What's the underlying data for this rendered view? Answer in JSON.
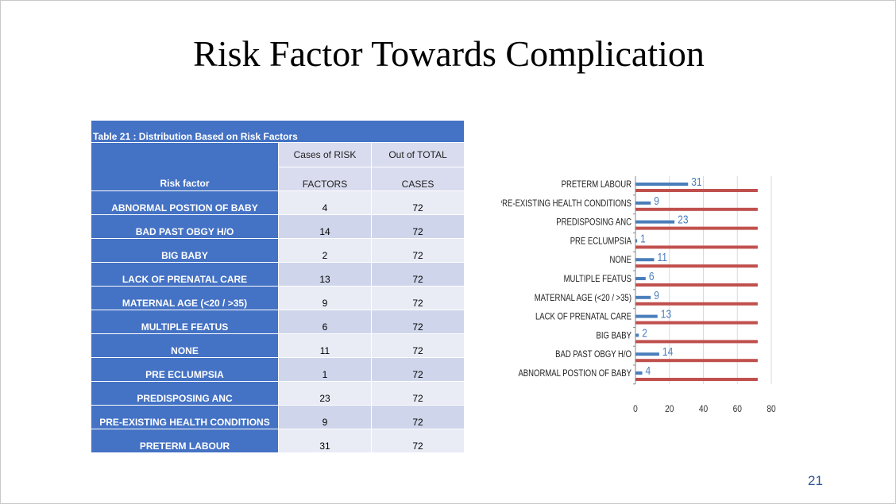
{
  "slide": {
    "title": "Risk Factor Towards Complication",
    "page_number": "21"
  },
  "table": {
    "caption": "Table 21 : Distribution Based on Risk Factors",
    "headers": {
      "factor": "Risk factor",
      "cases_line1": "Cases of RISK",
      "cases_line2": "FACTORS",
      "total_line1": "Out of TOTAL",
      "total_line2": "CASES"
    },
    "rows": [
      {
        "factor": "ABNORMAL POSTION OF BABY",
        "cases": "4",
        "total": "72"
      },
      {
        "factor": "BAD PAST OBGY H/O",
        "cases": "14",
        "total": "72"
      },
      {
        "factor": "BIG BABY",
        "cases": "2",
        "total": "72"
      },
      {
        "factor": "LACK OF PRENATAL CARE",
        "cases": "13",
        "total": "72"
      },
      {
        "factor": "MATERNAL AGE (<20 / >35)",
        "cases": "9",
        "total": "72"
      },
      {
        "factor": "MULTIPLE FEATUS",
        "cases": "6",
        "total": "72"
      },
      {
        "factor": "NONE",
        "cases": "11",
        "total": "72"
      },
      {
        "factor": "PRE ECLUMPSIA",
        "cases": "1",
        "total": "72"
      },
      {
        "factor": "PREDISPOSING ANC",
        "cases": "23",
        "total": "72"
      },
      {
        "factor": "PRE-EXISTING HEALTH CONDITIONS",
        "cases": "9",
        "total": "72"
      },
      {
        "factor": "PRETERM LABOUR",
        "cases": "31",
        "total": "72"
      }
    ]
  },
  "chart_data": {
    "type": "bar",
    "orientation": "horizontal",
    "title": "",
    "xlabel": "",
    "ylabel": "",
    "categories": [
      "PRETERM LABOUR",
      "PRE-EXISTING HEALTH CONDITIONS",
      "PREDISPOSING ANC",
      "PRE ECLUMPSIA",
      "NONE",
      "MULTIPLE FEATUS",
      "MATERNAL AGE (<20 / >35)",
      "LACK OF PRENATAL CARE",
      "BIG BABY",
      "BAD PAST OBGY H/O",
      "ABNORMAL POSTION OF BABY"
    ],
    "series": [
      {
        "color": "#4a7ebb",
        "values": [
          31,
          9,
          23,
          1,
          11,
          6,
          9,
          13,
          2,
          14,
          4
        ],
        "show_labels": true
      },
      {
        "color": "#c0504d",
        "values": [
          72,
          72,
          72,
          72,
          72,
          72,
          72,
          72,
          72,
          72,
          72
        ],
        "show_labels": false
      }
    ],
    "xlim": [
      0,
      80
    ],
    "xticks": [
      0,
      20,
      40,
      60,
      80
    ],
    "grid": true,
    "legend": "none"
  }
}
